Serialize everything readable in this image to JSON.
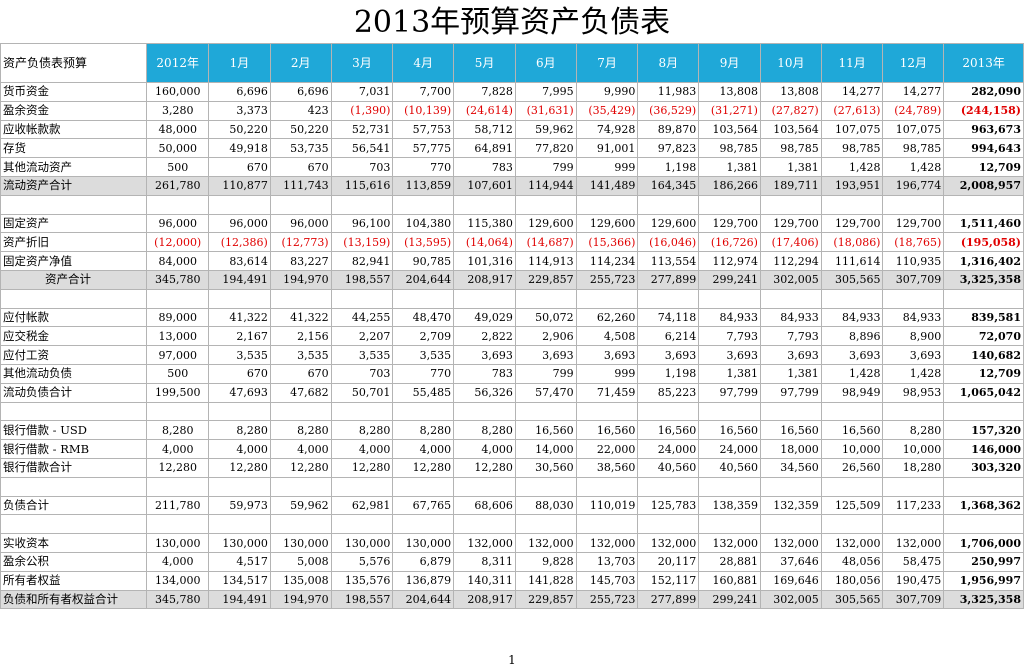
{
  "title": "2013年预算资产负债表",
  "header": [
    "资产负债表预算",
    "2012年",
    "1月",
    "2月",
    "3月",
    "4月",
    "5月",
    "6月",
    "7月",
    "8月",
    "9月",
    "10月",
    "11月",
    "12月",
    "2013年"
  ],
  "rows": [
    {
      "label": "货币资金",
      "values": [
        "160,000",
        "6,696",
        "6,696",
        "7,031",
        "7,700",
        "7,828",
        "7,995",
        "9,990",
        "11,983",
        "13,808",
        "13,808",
        "14,277",
        "14,277",
        "282,090"
      ]
    },
    {
      "label": "盈余资金",
      "neg": true,
      "values": [
        "3,280",
        "3,373",
        "423",
        "(1,390)",
        "(10,139)",
        "(24,614)",
        "(31,631)",
        "(35,429)",
        "(36,529)",
        "(31,271)",
        "(27,827)",
        "(27,613)",
        "(24,789)",
        "(244,158)"
      ]
    },
    {
      "label": "应收帐款款",
      "values": [
        "48,000",
        "50,220",
        "50,220",
        "52,731",
        "57,753",
        "58,712",
        "59,962",
        "74,928",
        "89,870",
        "103,564",
        "103,564",
        "107,075",
        "107,075",
        "963,673"
      ]
    },
    {
      "label": "存货",
      "values": [
        "50,000",
        "49,918",
        "53,735",
        "56,541",
        "57,775",
        "64,891",
        "77,820",
        "91,001",
        "97,823",
        "98,785",
        "98,785",
        "98,785",
        "98,785",
        "994,643"
      ]
    },
    {
      "label": "其他流动资产",
      "values": [
        "500",
        "670",
        "670",
        "703",
        "770",
        "783",
        "799",
        "999",
        "1,198",
        "1,381",
        "1,381",
        "1,428",
        "1,428",
        "12,709"
      ]
    },
    {
      "label": "流动资产合计",
      "total": true,
      "values": [
        "261,780",
        "110,877",
        "111,743",
        "115,616",
        "113,859",
        "107,601",
        "114,944",
        "141,489",
        "164,345",
        "186,266",
        "189,711",
        "193,951",
        "196,774",
        "2,008,957"
      ]
    },
    {
      "label": "",
      "blank": true,
      "values": [
        "",
        "",
        "",
        "",
        "",
        "",
        "",
        "",
        "",
        "",
        "",
        "",
        "",
        ""
      ]
    },
    {
      "label": "固定资产",
      "values": [
        "96,000",
        "96,000",
        "96,000",
        "96,100",
        "104,380",
        "115,380",
        "129,600",
        "129,600",
        "129,600",
        "129,700",
        "129,700",
        "129,700",
        "129,700",
        "1,511,460"
      ]
    },
    {
      "label": "资产折旧",
      "allneg": true,
      "values": [
        "(12,000)",
        "(12,386)",
        "(12,773)",
        "(13,159)",
        "(13,595)",
        "(14,064)",
        "(14,687)",
        "(15,366)",
        "(16,046)",
        "(16,726)",
        "(17,406)",
        "(18,086)",
        "(18,765)",
        "(195,058)"
      ]
    },
    {
      "label": "固定资产净值",
      "values": [
        "84,000",
        "83,614",
        "83,227",
        "82,941",
        "90,785",
        "101,316",
        "114,913",
        "114,234",
        "113,554",
        "112,974",
        "112,294",
        "111,614",
        "110,935",
        "1,316,402"
      ]
    },
    {
      "label": "资产合计",
      "total": true,
      "indent": true,
      "values": [
        "345,780",
        "194,491",
        "194,970",
        "198,557",
        "204,644",
        "208,917",
        "229,857",
        "255,723",
        "277,899",
        "299,241",
        "302,005",
        "305,565",
        "307,709",
        "3,325,358"
      ]
    },
    {
      "label": "",
      "blank": true,
      "values": [
        "",
        "",
        "",
        "",
        "",
        "",
        "",
        "",
        "",
        "",
        "",
        "",
        "",
        ""
      ]
    },
    {
      "label": "应付帐款",
      "values": [
        "89,000",
        "41,322",
        "41,322",
        "44,255",
        "48,470",
        "49,029",
        "50,072",
        "62,260",
        "74,118",
        "84,933",
        "84,933",
        "84,933",
        "84,933",
        "839,581"
      ]
    },
    {
      "label": "应交税金",
      "values": [
        "13,000",
        "2,167",
        "2,156",
        "2,207",
        "2,709",
        "2,822",
        "2,906",
        "4,508",
        "6,214",
        "7,793",
        "7,793",
        "8,896",
        "8,900",
        "72,070"
      ]
    },
    {
      "label": "应付工资",
      "values": [
        "97,000",
        "3,535",
        "3,535",
        "3,535",
        "3,535",
        "3,693",
        "3,693",
        "3,693",
        "3,693",
        "3,693",
        "3,693",
        "3,693",
        "3,693",
        "140,682"
      ]
    },
    {
      "label": "其他流动负债",
      "values": [
        "500",
        "670",
        "670",
        "703",
        "770",
        "783",
        "799",
        "999",
        "1,198",
        "1,381",
        "1,381",
        "1,428",
        "1,428",
        "12,709"
      ]
    },
    {
      "label": "流动负债合计",
      "values": [
        "199,500",
        "47,693",
        "47,682",
        "50,701",
        "55,485",
        "56,326",
        "57,470",
        "71,459",
        "85,223",
        "97,799",
        "97,799",
        "98,949",
        "98,953",
        "1,065,042"
      ]
    },
    {
      "label": "",
      "blank": true,
      "values": [
        "",
        "",
        "",
        "",
        "",
        "",
        "",
        "",
        "",
        "",
        "",
        "",
        "",
        ""
      ]
    },
    {
      "label": "银行借款 - USD",
      "values": [
        "8,280",
        "8,280",
        "8,280",
        "8,280",
        "8,280",
        "8,280",
        "16,560",
        "16,560",
        "16,560",
        "16,560",
        "16,560",
        "16,560",
        "8,280",
        "157,320"
      ]
    },
    {
      "label": "银行借款 - RMB",
      "values": [
        "4,000",
        "4,000",
        "4,000",
        "4,000",
        "4,000",
        "4,000",
        "14,000",
        "22,000",
        "24,000",
        "24,000",
        "18,000",
        "10,000",
        "10,000",
        "146,000"
      ]
    },
    {
      "label": " 银行借款合计",
      "values": [
        "12,280",
        "12,280",
        "12,280",
        "12,280",
        "12,280",
        "12,280",
        "30,560",
        "38,560",
        "40,560",
        "40,560",
        "34,560",
        "26,560",
        "18,280",
        "303,320"
      ]
    },
    {
      "label": "",
      "blank": true,
      "values": [
        "",
        "",
        "",
        "",
        "",
        "",
        "",
        "",
        "",
        "",
        "",
        "",
        "",
        ""
      ]
    },
    {
      "label": "负债合计",
      "values": [
        "211,780",
        "59,973",
        "59,962",
        "62,981",
        "67,765",
        "68,606",
        "88,030",
        "110,019",
        "125,783",
        "138,359",
        "132,359",
        "125,509",
        "117,233",
        "1,368,362"
      ]
    },
    {
      "label": "",
      "blank": true,
      "values": [
        "",
        "",
        "",
        "",
        "",
        "",
        "",
        "",
        "",
        "",
        "",
        "",
        "",
        ""
      ]
    },
    {
      "label": "实收资本",
      "values": [
        "130,000",
        "130,000",
        "130,000",
        "130,000",
        "130,000",
        "132,000",
        "132,000",
        "132,000",
        "132,000",
        "132,000",
        "132,000",
        "132,000",
        "132,000",
        "1,706,000"
      ]
    },
    {
      "label": "盈余公积",
      "values": [
        "4,000",
        "4,517",
        "5,008",
        "5,576",
        "6,879",
        "8,311",
        "9,828",
        "13,703",
        "20,117",
        "28,881",
        "37,646",
        "48,056",
        "58,475",
        "250,997"
      ]
    },
    {
      "label": "所有者权益",
      "values": [
        "134,000",
        "134,517",
        "135,008",
        "135,576",
        "136,879",
        "140,311",
        "141,828",
        "145,703",
        "152,117",
        "160,881",
        "169,646",
        "180,056",
        "190,475",
        "1,956,997"
      ]
    },
    {
      "label": " 负债和所有者权益合计",
      "total": true,
      "values": [
        "345,780",
        "194,491",
        "194,970",
        "198,557",
        "204,644",
        "208,917",
        "229,857",
        "255,723",
        "277,899",
        "299,241",
        "302,005",
        "305,565",
        "307,709",
        "3,325,358"
      ]
    }
  ],
  "page_number": "1"
}
